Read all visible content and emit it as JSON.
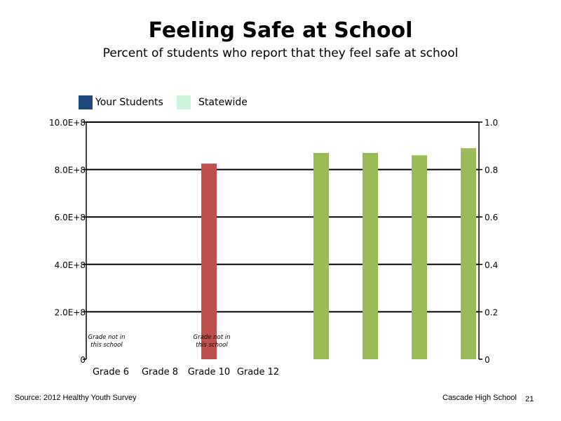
{
  "chart_data": {
    "type": "bar",
    "title": "Feeling Safe at School",
    "subtitle": "Percent of students who report that they feel safe at school",
    "legend": [
      {
        "name": "Your Students",
        "color": "#1F497D"
      },
      {
        "name": "Statewide",
        "color": "#CCF5DC"
      }
    ],
    "legend_position": "top-left",
    "grid": true,
    "categories": [
      "Grade 6",
      "Grade 8",
      "Grade 10",
      "Grade 12"
    ],
    "left_axis": {
      "ylim": [
        0,
        1000000000
      ],
      "ticks": [
        0,
        200000000,
        400000000,
        600000000,
        800000000,
        1000000000
      ],
      "tick_labels": [
        "0",
        "2.0E+8",
        "4.0E+8",
        "6.0E+8",
        "8.0E+8",
        "10.0E+8"
      ]
    },
    "right_axis": {
      "ylim": [
        0,
        1
      ],
      "ticks": [
        0,
        0.2,
        0.4,
        0.6,
        0.8,
        1.0
      ],
      "tick_labels": [
        "0",
        "0.2",
        "0.4",
        "0.6",
        "0.8",
        "1.0"
      ]
    },
    "bars": [
      {
        "category": "Grade 10",
        "axis": "left",
        "value": 825000000,
        "color": "#C0504D"
      },
      {
        "category": "",
        "axis": "right",
        "value": 0.87,
        "color": "#9BBB59"
      },
      {
        "category": "",
        "axis": "right",
        "value": 0.87,
        "color": "#9BBB59"
      },
      {
        "category": "",
        "axis": "right",
        "value": 0.86,
        "color": "#9BBB59"
      },
      {
        "category": "",
        "axis": "right",
        "value": 0.89,
        "color": "#9BBB59"
      }
    ],
    "annotations": [
      {
        "category": "Grade 6",
        "text": [
          "Grade not in",
          "this school"
        ]
      },
      {
        "category": "Grade 10",
        "text": [
          "Grade not in",
          "this school"
        ]
      }
    ]
  },
  "footer": {
    "source": "Source: 2012 Healthy Youth Survey",
    "school": "Cascade High  School",
    "page": "21"
  }
}
